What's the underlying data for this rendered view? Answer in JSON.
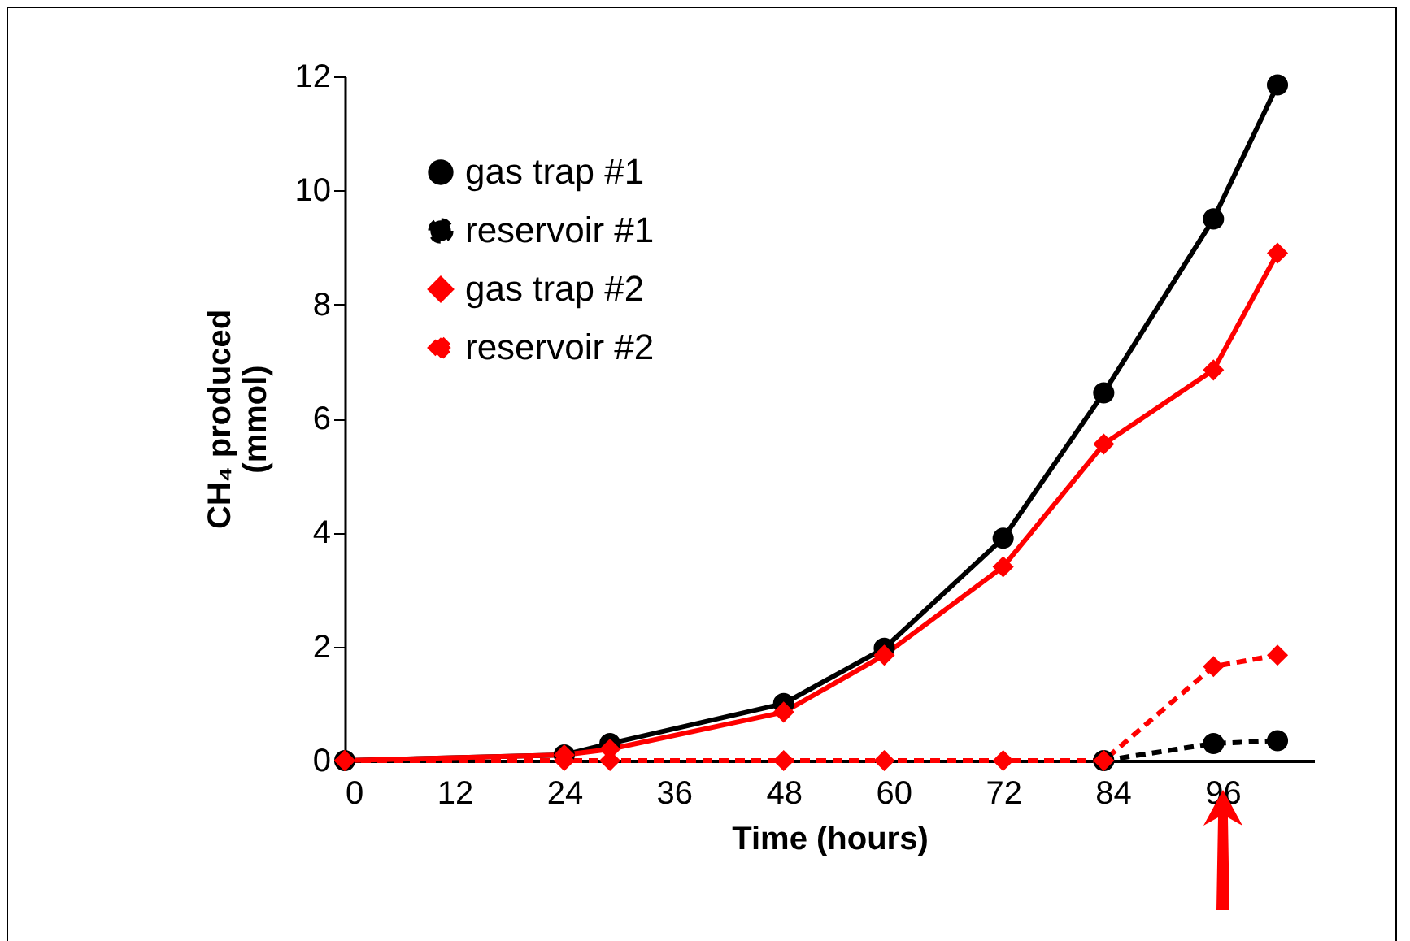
{
  "chart_data": {
    "type": "line",
    "xlabel": "Time (hours)",
    "ylabel": "CH₄ produced (mmol)",
    "x": [
      0,
      24,
      29,
      48,
      59,
      72,
      83,
      95,
      102
    ],
    "series": [
      {
        "name": "gas trap #1",
        "color": "#000000",
        "marker": "circle",
        "line_style": "solid",
        "values": [
          0,
          0.1,
          0.3,
          1.0,
          1.97,
          3.9,
          6.45,
          9.5,
          11.85
        ]
      },
      {
        "name": "reservoir #1",
        "color": "#000000",
        "marker": "circle",
        "line_style": "dashed",
        "values": [
          null,
          null,
          null,
          null,
          null,
          null,
          0,
          0.3,
          0.35
        ]
      },
      {
        "name": "gas trap #2",
        "color": "#ff0000",
        "marker": "diamond",
        "line_style": "solid",
        "values": [
          0,
          0.1,
          0.2,
          0.85,
          1.85,
          3.4,
          5.55,
          6.85,
          8.9
        ]
      },
      {
        "name": "reservoir #2",
        "color": "#ff0000",
        "marker": "diamond",
        "line_style": "dashed",
        "values": [
          0,
          0,
          0,
          0,
          0,
          0,
          0,
          1.65,
          1.85
        ]
      }
    ],
    "xlim": [
      0,
      106
    ],
    "xticks": [
      0,
      12,
      24,
      36,
      48,
      60,
      72,
      84,
      96
    ],
    "ylim": [
      0,
      12
    ],
    "yticks": [
      0,
      2,
      4,
      6,
      8,
      10,
      12
    ],
    "grid": false,
    "legend": "top left"
  }
}
